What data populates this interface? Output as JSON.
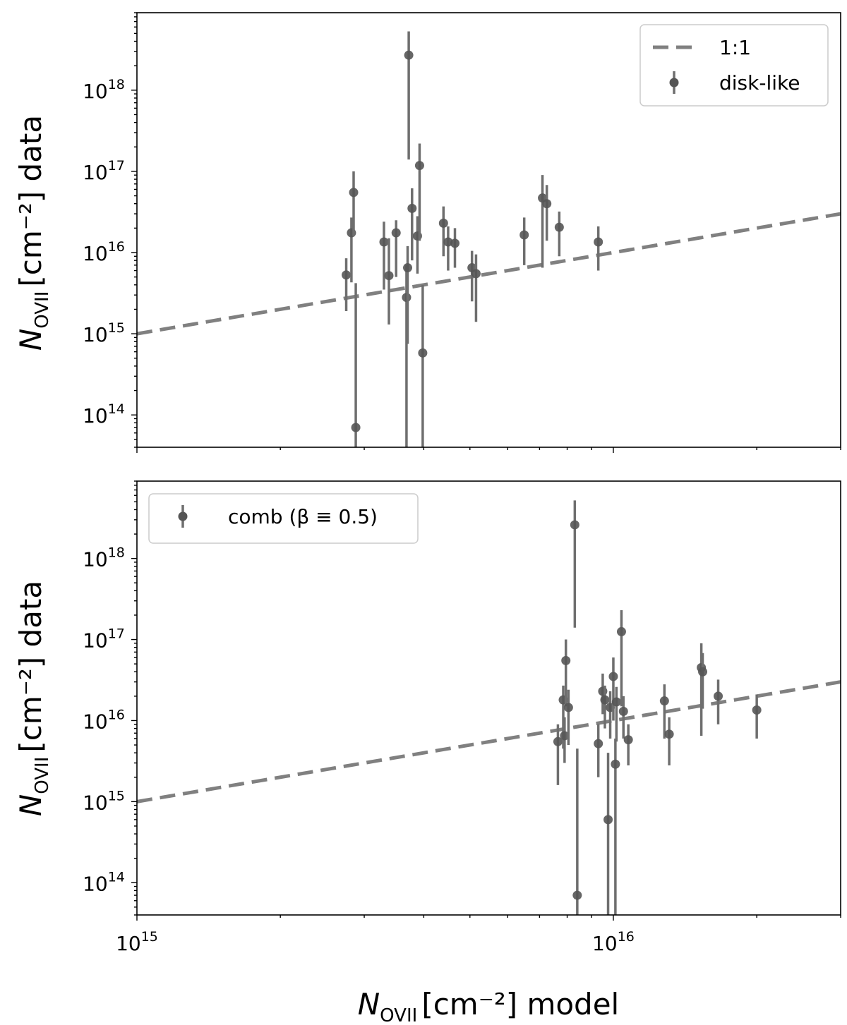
{
  "figure": {
    "x_label_sym": "N",
    "x_label_sub": "OVII",
    "x_label_text": "[cm⁻²] model",
    "y_label_sym": "N",
    "y_label_sub": "OVII",
    "y_label_text": "[cm⁻²] data"
  },
  "chart_data": [
    {
      "type": "scatter",
      "panel": "top",
      "xscale": "log",
      "yscale": "log",
      "xlim": [
        1000000000000000.0,
        3e+16
      ],
      "ylim": [
        40000000000000.0,
        9e+18
      ],
      "x_ticks": [
        {
          "v": 1000000000000000.0,
          "base": "10",
          "exp": "15"
        },
        {
          "v": 1e+16,
          "base": "10",
          "exp": "16"
        }
      ],
      "y_ticks": [
        {
          "v": 100000000000000.0,
          "base": "10",
          "exp": "14"
        },
        {
          "v": 1000000000000000.0,
          "base": "10",
          "exp": "15"
        },
        {
          "v": 1e+16,
          "base": "10",
          "exp": "16"
        },
        {
          "v": 1e+17,
          "base": "10",
          "exp": "17"
        },
        {
          "v": 1e+18,
          "base": "10",
          "exp": "18"
        }
      ],
      "legend": {
        "position": "upper right",
        "entries": [
          {
            "label": "1:1",
            "kind": "dashed-line"
          },
          {
            "label": "disk-like",
            "kind": "errorbar-point"
          }
        ]
      },
      "reference_line": {
        "label": "1:1",
        "slope": 1,
        "color": "#808080",
        "style": "dashed"
      },
      "series": [
        {
          "name": "disk-like",
          "color": "#555555",
          "points": [
            {
              "x": 2750000000000000.0,
              "y": 5300000000000000.0,
              "ylo": 1900000000000000.0,
              "yhi": 8500000000000000.0
            },
            {
              "x": 2820000000000000.0,
              "y": 1.75e+16,
              "ylo": 4300000000000000.0,
              "yhi": 2.7e+16
            },
            {
              "x": 2850000000000000.0,
              "y": 5.5e+16,
              "ylo": 1.6e+16,
              "yhi": 1e+17
            },
            {
              "x": 2880000000000000.0,
              "y": 70000000000000.0,
              "ylo": 30000000000000.0,
              "yhi": 4200000000000000.0
            },
            {
              "x": 3300000000000000.0,
              "y": 1.35e+16,
              "ylo": 3500000000000000.0,
              "yhi": 2.4e+16
            },
            {
              "x": 3380000000000000.0,
              "y": 5200000000000000.0,
              "ylo": 1300000000000000.0,
              "yhi": 1.5e+16
            },
            {
              "x": 3500000000000000.0,
              "y": 1.75e+16,
              "ylo": 5000000000000000.0,
              "yhi": 2.5e+16
            },
            {
              "x": 3680000000000000.0,
              "y": 2800000000000000.0,
              "ylo": 30000000000000.0,
              "yhi": 7000000000000000.0
            },
            {
              "x": 3700000000000000.0,
              "y": 6500000000000000.0,
              "ylo": 750000000000000.0,
              "yhi": 1.2e+16
            },
            {
              "x": 3720000000000000.0,
              "y": 2.7e+18,
              "ylo": 1.4e+17,
              "yhi": 5.3e+18
            },
            {
              "x": 3780000000000000.0,
              "y": 3.5e+16,
              "ylo": 8000000000000000.0,
              "yhi": 6.2e+16
            },
            {
              "x": 3880000000000000.0,
              "y": 1.6e+16,
              "ylo": 5500000000000000.0,
              "yhi": 2.8e+16
            },
            {
              "x": 3920000000000000.0,
              "y": 1.18e+17,
              "ylo": 1.4e+16,
              "yhi": 2.2e+17
            },
            {
              "x": 3980000000000000.0,
              "y": 580000000000000.0,
              "ylo": 30000000000000.0,
              "yhi": 4000000000000000.0
            },
            {
              "x": 4400000000000000.0,
              "y": 2.3e+16,
              "ylo": 9000000000000000.0,
              "yhi": 3.7e+16
            },
            {
              "x": 4500000000000000.0,
              "y": 1.35e+16,
              "ylo": 6000000000000000.0,
              "yhi": 2.1e+16
            },
            {
              "x": 4650000000000000.0,
              "y": 1.3e+16,
              "ylo": 6500000000000000.0,
              "yhi": 2e+16
            },
            {
              "x": 5050000000000000.0,
              "y": 6500000000000000.0,
              "ylo": 2500000000000000.0,
              "yhi": 1.05e+16
            },
            {
              "x": 5150000000000000.0,
              "y": 5500000000000000.0,
              "ylo": 1400000000000000.0,
              "yhi": 9500000000000000.0
            },
            {
              "x": 6500000000000000.0,
              "y": 1.65e+16,
              "ylo": 7000000000000000.0,
              "yhi": 2.7e+16
            },
            {
              "x": 7100000000000000.0,
              "y": 4.7e+16,
              "ylo": 6500000000000000.0,
              "yhi": 9e+16
            },
            {
              "x": 7250000000000000.0,
              "y": 4e+16,
              "ylo": 1.4e+16,
              "yhi": 6.8e+16
            },
            {
              "x": 7700000000000000.0,
              "y": 2.05e+16,
              "ylo": 9000000000000000.0,
              "yhi": 3.2e+16
            },
            {
              "x": 9300000000000000.0,
              "y": 1.35e+16,
              "ylo": 6000000000000000.0,
              "yhi": 2.1e+16
            }
          ]
        }
      ]
    },
    {
      "type": "scatter",
      "panel": "bottom",
      "xscale": "log",
      "yscale": "log",
      "xlim": [
        1000000000000000.0,
        3e+16
      ],
      "ylim": [
        40000000000000.0,
        9e+18
      ],
      "x_ticks": [
        {
          "v": 1000000000000000.0,
          "base": "10",
          "exp": "15"
        },
        {
          "v": 1e+16,
          "base": "10",
          "exp": "16"
        }
      ],
      "y_ticks": [
        {
          "v": 100000000000000.0,
          "base": "10",
          "exp": "14"
        },
        {
          "v": 1000000000000000.0,
          "base": "10",
          "exp": "15"
        },
        {
          "v": 1e+16,
          "base": "10",
          "exp": "16"
        },
        {
          "v": 1e+17,
          "base": "10",
          "exp": "17"
        },
        {
          "v": 1e+18,
          "base": "10",
          "exp": "18"
        }
      ],
      "legend": {
        "position": "upper left",
        "entries": [
          {
            "label": "comb (β ≡ 0.5)",
            "kind": "errorbar-point"
          }
        ]
      },
      "reference_line": {
        "label": "1:1",
        "slope": 1,
        "color": "#808080",
        "style": "dashed"
      },
      "series": [
        {
          "name": "comb (β ≡ 0.5)",
          "color": "#555555",
          "points": [
            {
              "x": 7650000000000000.0,
              "y": 5500000000000000.0,
              "ylo": 1600000000000000.0,
              "yhi": 9000000000000000.0
            },
            {
              "x": 7850000000000000.0,
              "y": 1.8e+16,
              "ylo": 4500000000000000.0,
              "yhi": 2.7e+16
            },
            {
              "x": 7900000000000000.0,
              "y": 6500000000000000.0,
              "ylo": 3000000000000000.0,
              "yhi": 1.1e+16
            },
            {
              "x": 7950000000000000.0,
              "y": 5.5e+16,
              "ylo": 1.5e+16,
              "yhi": 1e+17
            },
            {
              "x": 8050000000000000.0,
              "y": 1.45e+16,
              "ylo": 5000000000000000.0,
              "yhi": 2.4e+16
            },
            {
              "x": 8300000000000000.0,
              "y": 2.6e+18,
              "ylo": 1.4e+17,
              "yhi": 5.2e+18
            },
            {
              "x": 8400000000000000.0,
              "y": 70000000000000.0,
              "ylo": 30000000000000.0,
              "yhi": 4500000000000000.0
            },
            {
              "x": 9300000000000000.0,
              "y": 5200000000000000.0,
              "ylo": 2000000000000000.0,
              "yhi": 9000000000000000.0
            },
            {
              "x": 9500000000000000.0,
              "y": 2.3e+16,
              "ylo": 1.2e+16,
              "yhi": 3.8e+16
            },
            {
              "x": 9600000000000000.0,
              "y": 1.8e+16,
              "ylo": 8000000000000000.0,
              "yhi": 2.7e+16
            },
            {
              "x": 9750000000000000.0,
              "y": 600000000000000.0,
              "ylo": 30000000000000.0,
              "yhi": 4000000000000000.0
            },
            {
              "x": 9850000000000000.0,
              "y": 1.45e+16,
              "ylo": 6000000000000000.0,
              "yhi": 2.3e+16
            },
            {
              "x": 1e+16,
              "y": 3.5e+16,
              "ylo": 1e+16,
              "yhi": 6e+16
            },
            {
              "x": 1.01e+16,
              "y": 2900000000000000.0,
              "ylo": 30000000000000.0,
              "yhi": 6000000000000000.0
            },
            {
              "x": 1.015e+16,
              "y": 1.7e+16,
              "ylo": 5500000000000000.0,
              "yhi": 2.6e+16
            },
            {
              "x": 1.04e+16,
              "y": 1.25e+17,
              "ylo": 1.5e+16,
              "yhi": 2.3e+17
            },
            {
              "x": 1.05e+16,
              "y": 1.3e+16,
              "ylo": 6000000000000000.0,
              "yhi": 2e+16
            },
            {
              "x": 1.075e+16,
              "y": 5800000000000000.0,
              "ylo": 2800000000000000.0,
              "yhi": 9000000000000000.0
            },
            {
              "x": 1.28e+16,
              "y": 1.75e+16,
              "ylo": 6000000000000000.0,
              "yhi": 2.8e+16
            },
            {
              "x": 1.31e+16,
              "y": 6800000000000000.0,
              "ylo": 2800000000000000.0,
              "yhi": 1.1e+16
            },
            {
              "x": 1.53e+16,
              "y": 4.5e+16,
              "ylo": 6500000000000000.0,
              "yhi": 9e+16
            },
            {
              "x": 1.54e+16,
              "y": 4e+16,
              "ylo": 1.4e+16,
              "yhi": 6.8e+16
            },
            {
              "x": 1.66e+16,
              "y": 2e+16,
              "ylo": 9000000000000000.0,
              "yhi": 3.2e+16
            },
            {
              "x": 2e+16,
              "y": 1.35e+16,
              "ylo": 6000000000000000.0,
              "yhi": 2.1e+16
            }
          ]
        }
      ]
    }
  ]
}
